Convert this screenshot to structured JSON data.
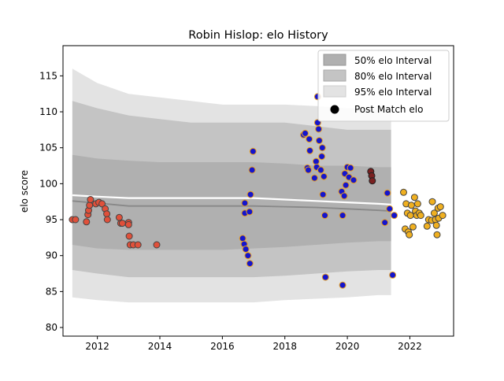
{
  "chart_data": {
    "type": "scatter",
    "title": "Robin Hislop: elo History",
    "ylabel": "elo score",
    "xlabel": "",
    "xlim": [
      2010.9,
      2023.4
    ],
    "ylim": [
      78.8,
      119.2
    ],
    "x_ticks": [
      2012,
      2014,
      2016,
      2018,
      2020,
      2022
    ],
    "y_ticks": [
      80,
      85,
      90,
      95,
      100,
      105,
      110,
      115
    ],
    "grid": false,
    "legend": {
      "placement": "top-right",
      "entries": [
        "50% elo Interval",
        "80% elo Interval",
        "95% elo Interval",
        "Post Match elo"
      ]
    },
    "colors": {
      "interval_50": "#b0b0b0",
      "interval_80": "#c4c4c4",
      "interval_95": "#e3e3e3",
      "median_line": "#888888",
      "mean_line": "#ffffff"
    },
    "intervals": {
      "x": [
        2011.2,
        2012,
        2013,
        2014,
        2015,
        2016,
        2017,
        2018,
        2019,
        2020,
        2021,
        2021.4
      ],
      "p95_upper": [
        116,
        114,
        112.5,
        112,
        111.5,
        111,
        111,
        111,
        110.8,
        110.5,
        110.5,
        110.5
      ],
      "p95_lower": [
        84.2,
        83.8,
        83.5,
        83.5,
        83.5,
        83.5,
        83.5,
        83.8,
        84,
        84.2,
        84.5,
        84.5
      ],
      "p80_upper": [
        111.5,
        110.5,
        109.5,
        109,
        108.5,
        108.5,
        108.5,
        108.5,
        108,
        107.5,
        107.5,
        107.5
      ],
      "p80_lower": [
        88,
        87.5,
        87,
        87,
        87,
        87,
        87,
        87.2,
        87.5,
        87.8,
        88,
        88
      ],
      "p50_upper": [
        104,
        103.5,
        103.2,
        103,
        103,
        103,
        103,
        102.8,
        102.5,
        102.5,
        102.3,
        102.3
      ],
      "p50_lower": [
        91.5,
        91,
        90.8,
        90.8,
        90.8,
        90.8,
        91,
        91.2,
        91.5,
        91.8,
        92,
        92
      ],
      "median": [
        97.6,
        97.3,
        96.9,
        96.9,
        96.9,
        96.9,
        96.9,
        96.8,
        96.7,
        96.5,
        96.3,
        96.2
      ],
      "mean": [
        98.4,
        98.2,
        98.0,
        98.0,
        98.0,
        98.0,
        98.0,
        97.8,
        97.6,
        97.4,
        97.2,
        97.1
      ]
    },
    "series": [
      {
        "fill": "#e0503a",
        "edge": "#444444",
        "points": [
          [
            2011.2,
            95.0
          ],
          [
            2011.3,
            95.0
          ],
          [
            2011.65,
            94.7
          ],
          [
            2011.7,
            95.7
          ],
          [
            2011.72,
            96.3
          ],
          [
            2011.75,
            97.0
          ],
          [
            2011.78,
            97.8
          ],
          [
            2011.95,
            97.2
          ],
          [
            2012.05,
            97.4
          ],
          [
            2012.15,
            97.2
          ],
          [
            2012.25,
            96.5
          ],
          [
            2012.3,
            95.8
          ],
          [
            2012.32,
            95.0
          ],
          [
            2012.7,
            95.3
          ],
          [
            2012.75,
            94.5
          ],
          [
            2012.8,
            94.5
          ],
          [
            2013.0,
            94.6
          ],
          [
            2013.0,
            94.3
          ],
          [
            2013.02,
            92.7
          ],
          [
            2013.05,
            91.5
          ],
          [
            2013.15,
            91.5
          ],
          [
            2013.3,
            91.5
          ],
          [
            2013.9,
            91.5
          ]
        ]
      },
      {
        "fill": "#1515cc",
        "edge": "#e8a020",
        "points": [
          [
            2016.65,
            92.4
          ],
          [
            2016.7,
            91.6
          ],
          [
            2016.72,
            95.9
          ],
          [
            2016.72,
            97.3
          ],
          [
            2016.75,
            90.9
          ],
          [
            2016.82,
            90.0
          ],
          [
            2016.87,
            96.1
          ],
          [
            2016.88,
            88.9
          ],
          [
            2016.9,
            98.5
          ],
          [
            2016.95,
            101.9
          ],
          [
            2016.98,
            104.5
          ],
          [
            2018.6,
            106.8
          ],
          [
            2018.65,
            107.0
          ],
          [
            2018.72,
            102.2
          ],
          [
            2018.75,
            101.9
          ],
          [
            2018.78,
            106.2
          ],
          [
            2018.8,
            104.6
          ],
          [
            2018.95,
            100.8
          ],
          [
            2019.0,
            103.1
          ],
          [
            2019.02,
            102.3
          ],
          [
            2019.05,
            108.5
          ],
          [
            2019.05,
            112.1
          ],
          [
            2019.08,
            107.6
          ],
          [
            2019.1,
            106.0
          ],
          [
            2019.15,
            101.9
          ],
          [
            2019.18,
            103.8
          ],
          [
            2019.2,
            105.0
          ],
          [
            2019.22,
            98.5
          ],
          [
            2019.25,
            101.0
          ],
          [
            2019.28,
            95.6
          ],
          [
            2019.3,
            87.0
          ],
          [
            2019.82,
            98.9
          ],
          [
            2019.85,
            95.6
          ],
          [
            2019.85,
            85.9
          ],
          [
            2019.9,
            98.3
          ],
          [
            2019.92,
            101.4
          ],
          [
            2019.95,
            99.8
          ],
          [
            2020.0,
            102.3
          ],
          [
            2020.05,
            100.9
          ],
          [
            2020.1,
            102.2
          ],
          [
            2020.2,
            100.5
          ],
          [
            2021.2,
            94.6
          ],
          [
            2021.28,
            98.7
          ],
          [
            2021.35,
            96.5
          ],
          [
            2021.45,
            87.3
          ],
          [
            2021.5,
            95.6
          ]
        ]
      },
      {
        "fill": "#7a2020",
        "edge": "#222222",
        "points": [
          [
            2020.75,
            101.7
          ],
          [
            2020.78,
            101.1
          ],
          [
            2020.8,
            100.4
          ]
        ]
      },
      {
        "fill": "#f0b020",
        "edge": "#444444",
        "points": [
          [
            2021.8,
            98.8
          ],
          [
            2021.85,
            93.7
          ],
          [
            2021.88,
            97.2
          ],
          [
            2021.92,
            95.9
          ],
          [
            2021.95,
            93.3
          ],
          [
            2021.98,
            92.9
          ],
          [
            2022.02,
            95.6
          ],
          [
            2022.05,
            97.0
          ],
          [
            2022.1,
            94.0
          ],
          [
            2022.15,
            98.1
          ],
          [
            2022.18,
            96.2
          ],
          [
            2022.22,
            95.6
          ],
          [
            2022.25,
            97.2
          ],
          [
            2022.3,
            95.9
          ],
          [
            2022.35,
            95.6
          ],
          [
            2022.55,
            94.1
          ],
          [
            2022.6,
            95.0
          ],
          [
            2022.7,
            94.9
          ],
          [
            2022.72,
            97.5
          ],
          [
            2022.78,
            95.9
          ],
          [
            2022.82,
            95.0
          ],
          [
            2022.85,
            94.2
          ],
          [
            2022.87,
            92.9
          ],
          [
            2022.9,
            96.6
          ],
          [
            2022.92,
            95.2
          ],
          [
            2022.98,
            96.8
          ],
          [
            2023.05,
            95.6
          ]
        ]
      }
    ]
  }
}
